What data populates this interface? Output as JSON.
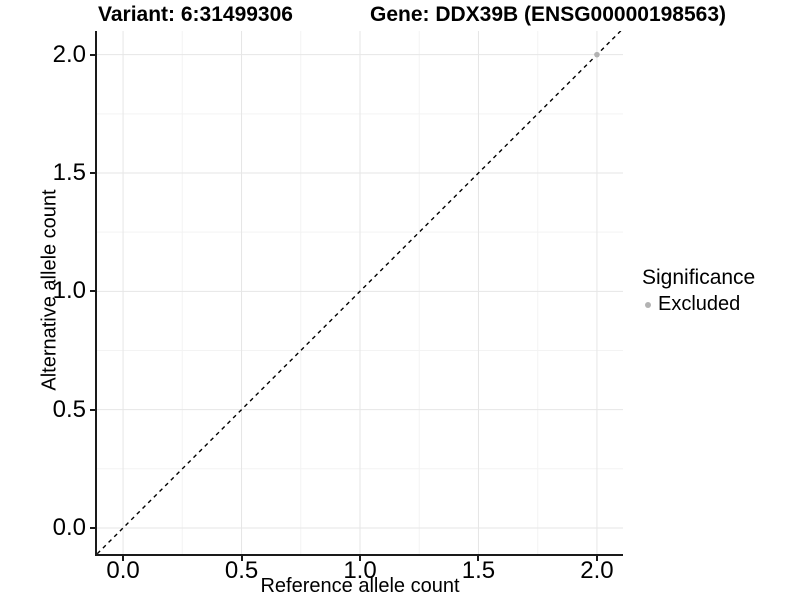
{
  "title": {
    "variant": "Variant: 6:31499306",
    "gene": "Gene: DDX39B (ENSG00000198563)"
  },
  "colors": {
    "background": "#ffffff",
    "axis": "#1a1a1a",
    "grid_major": "#e6e6e6",
    "grid_minor": "#f3f3f3",
    "point_excluded": "#b3b3b3",
    "text": "#000000"
  },
  "chart_data": {
    "type": "scatter",
    "title": "Variant: 6:31499306    Gene: DDX39B (ENSG00000198563)",
    "xlabel": "Reference allele count",
    "ylabel": "Alternative allele count",
    "xlim": [
      -0.11,
      2.11
    ],
    "ylim": [
      -0.11,
      2.1
    ],
    "x_ticks": [
      0.0,
      0.5,
      1.0,
      1.5,
      2.0
    ],
    "y_ticks": [
      0.0,
      0.5,
      1.0,
      1.5,
      2.0
    ],
    "x_tick_labels": [
      "0.0",
      "0.5",
      "1.0",
      "1.5",
      "2.0"
    ],
    "y_tick_labels": [
      "0.0",
      "0.5",
      "1.0",
      "1.5",
      "2.0"
    ],
    "x_minor_ticks": [
      0.25,
      0.75,
      1.25,
      1.75
    ],
    "y_minor_ticks": [
      0.25,
      0.75,
      1.25,
      1.75
    ],
    "grid": true,
    "series": [
      {
        "name": "Excluded",
        "color": "#b3b3b3",
        "points": [
          {
            "x": 2.0,
            "y": 2.0
          }
        ]
      }
    ],
    "reference_line": {
      "type": "identity",
      "slope": 1,
      "intercept": 0,
      "style": "dashed",
      "color": "#000000"
    },
    "legend": {
      "title": "Significance",
      "position": "right",
      "entries": [
        {
          "label": "Excluded",
          "color": "#b3b3b3"
        }
      ]
    }
  }
}
